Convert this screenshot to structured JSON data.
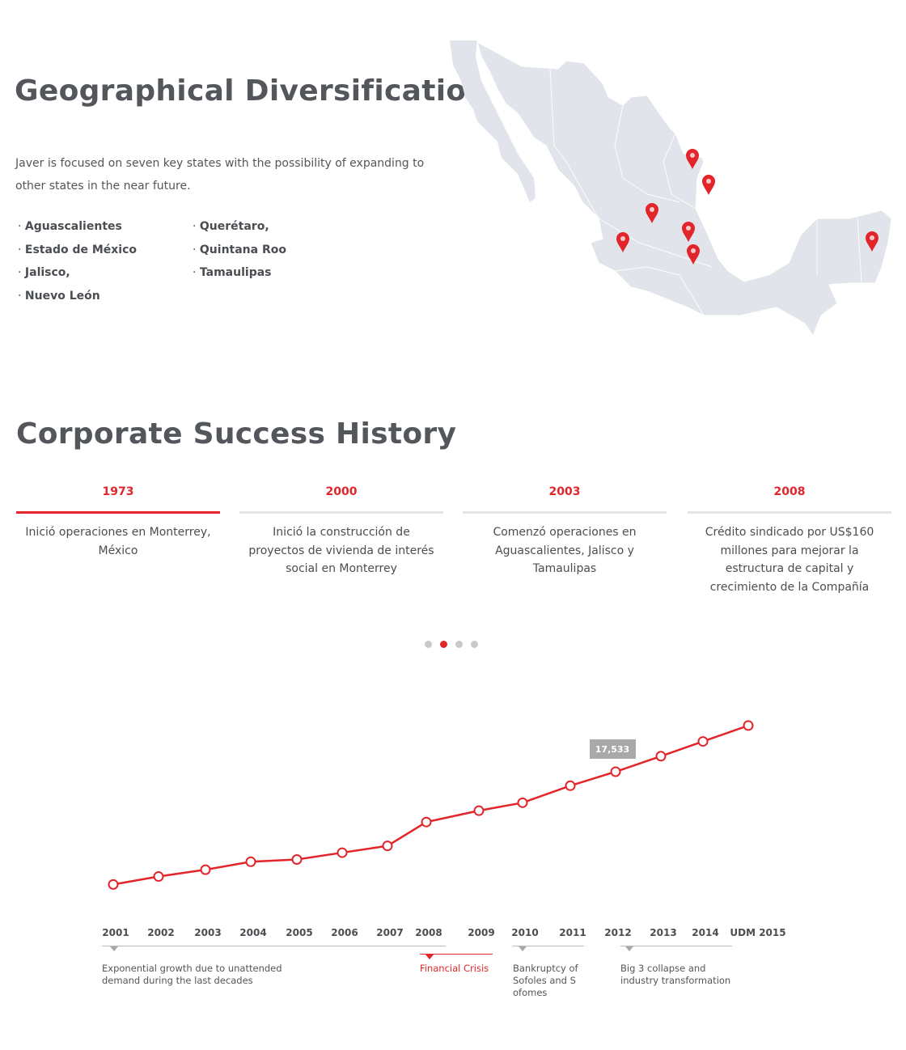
{
  "geo": {
    "title": "Geographical Diversification",
    "intro": "Javer is focused on seven key states with the possibility of expanding to other states in the near future.",
    "states_col1": [
      "Aguascalientes",
      "Estado de México",
      "Jalisco,",
      "Nuevo León"
    ],
    "states_col2": [
      "Querétaro,",
      "Quintana Roo",
      "Tamaulipas"
    ],
    "map_color": "#e1e4ea",
    "pin_color": "#e2252b",
    "pin_icon": "map-pin-icon"
  },
  "history": {
    "title": "Corporate Success History",
    "items": [
      {
        "year": "1973",
        "text": "Inició operaciones en Monterrey, México"
      },
      {
        "year": "2000",
        "text": "Inició la construcción de proyectos de vivienda de interés social en Monterrey"
      },
      {
        "year": "2003",
        "text": "Comenzó operaciones en Aguascalientes, Jalisco y Tamaulipas"
      },
      {
        "year": "2008",
        "text": "Crédito sindicado por US$160 millones para mejorar la estructura de capital y crecimiento de la Compañía"
      }
    ],
    "active_tab": 0,
    "pages": 4,
    "active_page": 1
  },
  "chart_data": {
    "type": "line",
    "categories": [
      "2001",
      "2002",
      "2003",
      "2004",
      "2005",
      "2006",
      "2007",
      "2008",
      "2009",
      "2010",
      "2011",
      "2012",
      "2013",
      "2014",
      "UDM 2015"
    ],
    "values": [
      7600,
      8300,
      8900,
      9600,
      9800,
      10400,
      11000,
      13100,
      14100,
      14800,
      16300,
      17533,
      18900,
      20200,
      21600
    ],
    "data_label": {
      "category": "2012",
      "text": "17,533"
    },
    "line_color": "#e2252b",
    "grid": false,
    "eras": [
      {
        "text": "Exponential growth due to unattended demand during the last decades",
        "highlight": false
      },
      {
        "text": "Financial Crisis",
        "highlight": true
      },
      {
        "text": "Bankruptcy of Sofoles and S ofomes",
        "highlight": false
      },
      {
        "text": "Big 3 collapse and industry transformation",
        "highlight": false
      }
    ]
  }
}
